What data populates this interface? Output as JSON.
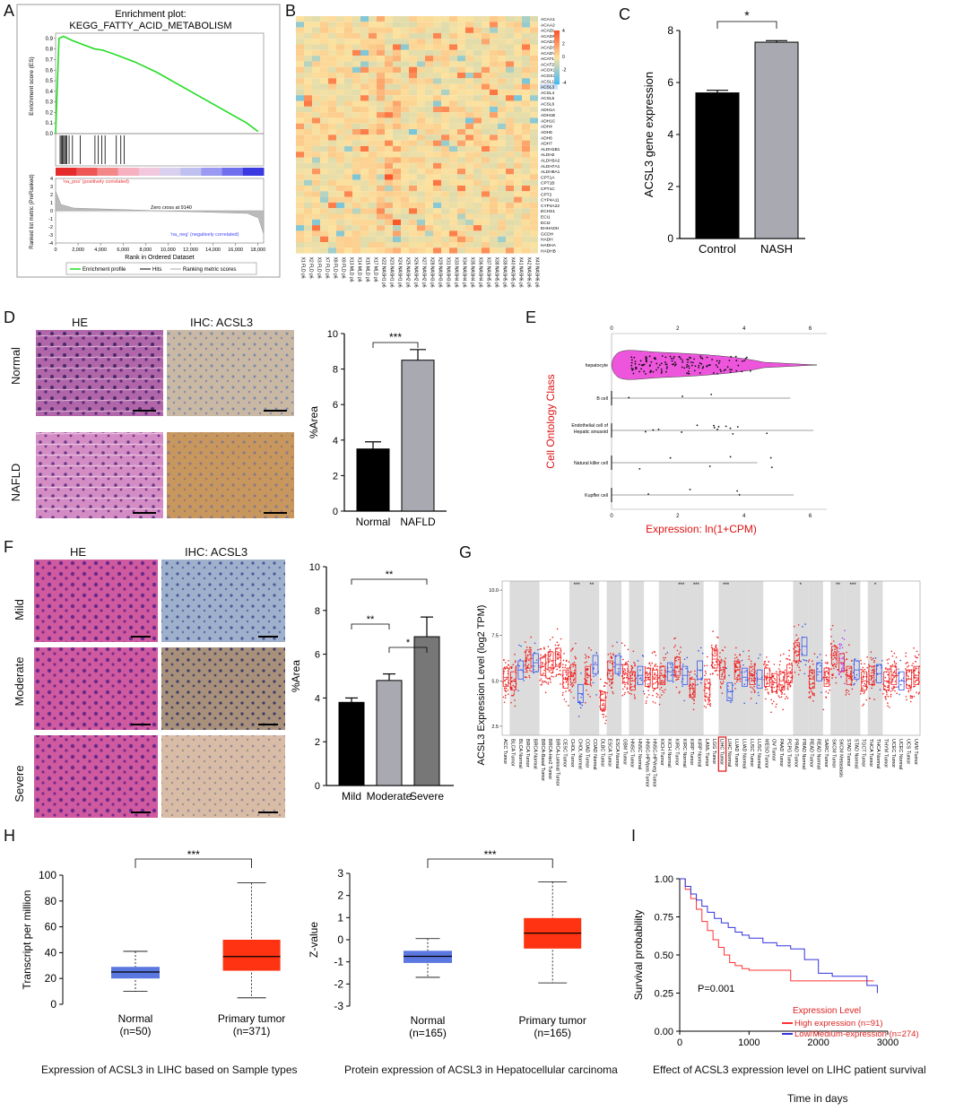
{
  "panels": {
    "A": "A",
    "B": "B",
    "C": "C",
    "D": "D",
    "E": "E",
    "F": "F",
    "G": "G",
    "H": "H",
    "I": "I"
  },
  "panelA": {
    "title_line1": "Enrichment plot:",
    "title_line2": "KEGG_FATTY_ACID_METABOLISM",
    "es_ylabel": "Enrichment score (ES)",
    "rank_ylabel": "Ranked list metric (PreRanked)",
    "xlabel": "Rank in Ordered Dataset",
    "pos_label": "'na_pos' (positively correlated)",
    "neg_label": "'na_neg' (negatively correlated)",
    "zero_cross": "Zero cross at 9140",
    "legend": [
      "Enrichment profile",
      "Hits",
      "Ranking metric scores"
    ],
    "colors": {
      "es": "#22dd22",
      "hits": "#000000",
      "rank": "#aaaaaa"
    }
  },
  "chart_data": [
    {
      "id": "A-es",
      "type": "line",
      "title": "KEGG_FATTY_ACID_METABOLISM",
      "x": [
        0,
        300,
        700,
        1500,
        2500,
        3500,
        4200,
        5500,
        7000,
        9000,
        11000,
        13000,
        15000,
        17000,
        18000
      ],
      "values": [
        0,
        0.9,
        0.92,
        0.88,
        0.84,
        0.8,
        0.79,
        0.74,
        0.68,
        0.58,
        0.46,
        0.34,
        0.22,
        0.1,
        0.02
      ],
      "xlim": [
        0,
        18500
      ],
      "ylim": [
        0,
        0.95
      ],
      "yticks": [
        0.0,
        0.1,
        0.2,
        0.3,
        0.4,
        0.5,
        0.6,
        0.7,
        0.8,
        0.9
      ],
      "xticks": [
        0,
        2000,
        4000,
        6000,
        8000,
        10000,
        12000,
        14000,
        16000,
        18000
      ],
      "xtick_labels": [
        "0",
        "2,000",
        "4,000",
        "6,000",
        "8,000",
        "10,000",
        "12,000",
        "14,000",
        "16,000",
        "18,000"
      ]
    },
    {
      "id": "A-rank",
      "type": "area",
      "ylim": [
        -4,
        4
      ],
      "yticks": [
        4,
        3,
        2,
        1,
        0,
        -1,
        -2,
        -3,
        -4
      ],
      "zero_cross": 9140
    },
    {
      "id": "B",
      "type": "heatmap",
      "rows": [
        "ACAA1",
        "ACAA2",
        "ACADL",
        "ACADM",
        "ACADS",
        "ACADSB",
        "ACADVL",
        "ACAT1",
        "ACAT2",
        "ACOX1",
        "ACOX3",
        "ACSL1",
        "ACSL3",
        "ACSL4",
        "ACSL5",
        "ACSL6",
        "ADH1A",
        "ADH1B",
        "ADH1C",
        "ADH4",
        "ADH5",
        "ADH6",
        "ADH7",
        "ALDH1B1",
        "ALDH2",
        "ALDH3A2",
        "ALDH7A1",
        "ALDH9A1",
        "CPT1A",
        "CPT1B",
        "CPT1C",
        "CPT2",
        "CYP4A11",
        "CYP4A22",
        "ECHS1",
        "ECI1",
        "ECI2",
        "EHHADH",
        "GCDH",
        "HADH",
        "HADHA",
        "HADHB"
      ],
      "cols": [
        "X1 FLD p6",
        "X2 FLD p6",
        "X3 FLD p6",
        "X7 FLD p6",
        "X8 FLD p6",
        "X9 FLD p6",
        "X13 MLD p6",
        "X14 MLD p6",
        "X15 MLD p6",
        "X17 MLD p6",
        "X22 NASH1 p6",
        "X23 NASH1 p6",
        "X24 NASH1 p6",
        "X25 NASH2 p6",
        "X26 NASH2 p6",
        "X27 NASH2 p6",
        "X28 NASH3 p6",
        "X29 NASH3 p6",
        "X31 NASH3 p6",
        "X33 NASH4 p6",
        "X34 NASH4 p6",
        "X35 NASH4 p6",
        "X36 NASH4 p6",
        "X37 NASH5 p6",
        "X38 NASH5 p6",
        "X39 NASH5 p6",
        "X40 NASH5 p6",
        "X41 NASH6 p6",
        "X42 NASH6 p6",
        "X43 NASH6 p6"
      ],
      "legend_ticks": [
        "4",
        "2",
        "0",
        "-2",
        "-4"
      ],
      "highlight_row": "ACSL3"
    },
    {
      "id": "C",
      "type": "bar",
      "categories": [
        "Control",
        "NASH"
      ],
      "values": [
        5.6,
        7.55
      ],
      "errors": [
        0.1,
        0.06
      ],
      "ylabel": "ACSL3 gene expression",
      "ylim": [
        0,
        8
      ],
      "yticks": [
        0,
        2,
        4,
        6,
        8
      ],
      "significance": "*",
      "colors": [
        "#000000",
        "#a9a9b1"
      ]
    },
    {
      "id": "D",
      "type": "bar",
      "categories": [
        "Normal",
        "NAFLD"
      ],
      "values": [
        3.5,
        8.5
      ],
      "errors": [
        0.4,
        0.6
      ],
      "ylabel": "%Area",
      "ylim": [
        0,
        10
      ],
      "yticks": [
        0,
        2,
        4,
        6,
        8,
        10
      ],
      "significance": "***",
      "colors": [
        "#000000",
        "#a9a9b1"
      ]
    },
    {
      "id": "E",
      "type": "scatter",
      "xlabel": "Expression: ln(1+CPM)",
      "ylabel": "Cell Ontology Class",
      "categories": [
        "hepatocyte",
        "B cell",
        "Endothelial cell of Hepatic sinusoid",
        "Natural killer cell",
        "Kupffer cell"
      ],
      "xticks": [
        0,
        2,
        4,
        6
      ],
      "xlim": [
        0,
        6.5
      ],
      "ranges": [
        [
          0,
          6.2
        ],
        [
          0,
          5.4
        ],
        [
          0,
          6.1
        ],
        [
          0,
          4.4
        ],
        [
          0,
          5.5
        ]
      ]
    },
    {
      "id": "F",
      "type": "bar",
      "categories": [
        "Mild",
        "Moderate",
        "Severe"
      ],
      "values": [
        3.8,
        4.8,
        6.8
      ],
      "errors": [
        0.2,
        0.3,
        0.9
      ],
      "ylabel": "%Area",
      "ylim": [
        0,
        10
      ],
      "yticks": [
        0,
        2,
        4,
        6,
        8,
        10
      ],
      "significance": [
        {
          "pair": [
            "Mild",
            "Severe"
          ],
          "label": "**"
        },
        {
          "pair": [
            "Mild",
            "Moderate"
          ],
          "label": "**"
        },
        {
          "pair": [
            "Moderate",
            "Severe"
          ],
          "label": "*"
        }
      ],
      "colors": [
        "#000000",
        "#a9a9b1",
        "#777777"
      ]
    },
    {
      "id": "G",
      "type": "scatter",
      "ylabel": "ACSL3 Expression Level (log2 TPM)",
      "yticks": [
        2.5,
        5.0,
        7.5,
        10.0
      ],
      "ylim": [
        2,
        10.5
      ],
      "categories": [
        "ACC.Tumor",
        "BLCA.Tumor",
        "BLCA.Normal",
        "BRCA.Tumor",
        "BRCA.Normal",
        "BRCA-Basal.Tumor",
        "BRCA-Her2.Tumor",
        "BRCA-Luminal.Tumor",
        "CESC.Tumor",
        "CHOL.Tumor",
        "CHOL.Normal",
        "COAD.Tumor",
        "COAD.Normal",
        "DLBC.Tumor",
        "ESCA.Tumor",
        "ESCA.Normal",
        "GBM.Tumor",
        "HNSC.Tumor",
        "HNSC.Normal",
        "HNSC-HPVpos.Tumor",
        "HNSC-HPVneg.Tumor",
        "KICH.Tumor",
        "KICH.Normal",
        "KIRC.Tumor",
        "KIRC.Normal",
        "KIRP.Tumor",
        "KIRP.Normal",
        "LAML.Tumor",
        "LGG.Tumor",
        "LIHC.Tumor",
        "LIHC.Normal",
        "LUAD.Tumor",
        "LUAD.Normal",
        "LUSC.Tumor",
        "LUSC.Normal",
        "MESO.Tumor",
        "OV.Tumor",
        "PAAD.Tumor",
        "PCPG.Tumor",
        "PRAD.Tumor",
        "PRAD.Normal",
        "READ.Tumor",
        "READ.Normal",
        "SARC.Tumor",
        "SKCM.Tumor",
        "SKCM.Metastasis",
        "STAD.Tumor",
        "STAD.Normal",
        "TGCT.Tumor",
        "THCA.Tumor",
        "THCA.Normal",
        "THYM.Tumor",
        "UCEC.Tumor",
        "UCEC.Normal",
        "UCS.Tumor",
        "UVM.Tumor"
      ],
      "medians": [
        5.2,
        5.0,
        5.6,
        6.2,
        6.0,
        5.8,
        6.1,
        6.3,
        5.1,
        5.4,
        4.3,
        5.3,
        5.9,
        3.9,
        5.6,
        5.9,
        5.4,
        5.0,
        5.3,
        5.2,
        5.1,
        5.3,
        5.5,
        5.8,
        5.3,
        4.6,
        5.6,
        4.6,
        6.2,
        5.6,
        4.4,
        5.6,
        5.2,
        5.3,
        5.1,
        5.2,
        4.9,
        5.0,
        5.4,
        6.6,
        6.9,
        5.1,
        5.5,
        5.2,
        6.4,
        6.0,
        5.3,
        5.6,
        5.0,
        5.3,
        5.4,
        5.0,
        5.3,
        5.0,
        5.1,
        5.3
      ],
      "significance": {
        "CHOL.Normal": "***",
        "COAD.Normal": "**",
        "KIRC.Normal": "***",
        "KIRP.Normal": "***",
        "LIHC.Normal": "***",
        "PRAD.Normal": "*",
        "SKCM.Metastasis": "**",
        "STAD.Normal": "***",
        "THCA.Normal": "*"
      },
      "highlight": "LIHC.Tumor"
    },
    {
      "id": "H-left",
      "type": "box",
      "categories": [
        "Normal\n(n=50)",
        "Primary tumor\n(n=371)"
      ],
      "boxes": [
        {
          "min": 10,
          "q1": 20,
          "median": 25,
          "q3": 29,
          "max": 41,
          "color": "#5b77e0"
        },
        {
          "min": 5,
          "q1": 26,
          "median": 37,
          "q3": 50,
          "max": 94,
          "color": "#ff3311"
        }
      ],
      "ylabel": "Transcript per million",
      "ylim": [
        0,
        100
      ],
      "yticks": [
        0,
        20,
        40,
        60,
        80,
        100
      ],
      "significance": "***",
      "caption": "Expression of ACSL3 in LIHC based on Sample types"
    },
    {
      "id": "H-right",
      "type": "box",
      "categories": [
        "Normal\n(n=165)",
        "Primary tumor\n(n=165)"
      ],
      "boxes": [
        {
          "min": -1.7,
          "q1": -1.05,
          "median": -0.75,
          "q3": -0.5,
          "max": 0.05,
          "color": "#5b77e0"
        },
        {
          "min": -1.95,
          "q1": -0.4,
          "median": 0.3,
          "q3": 0.98,
          "max": 2.62,
          "color": "#ff3311"
        }
      ],
      "ylabel": "Z-value",
      "ylim": [
        -3,
        3
      ],
      "yticks": [
        -3,
        -2,
        -1,
        0,
        1,
        2,
        3
      ],
      "significance": "***",
      "caption": "Protein expression of ACSL3 in Hepatocellular carcinoma"
    },
    {
      "id": "I",
      "type": "line",
      "ylabel": "Survival probability",
      "xlabel": "Time in days",
      "xlim": [
        0,
        3000
      ],
      "ylim": [
        0,
        1
      ],
      "xticks": [
        0,
        1000,
        2000,
        3000
      ],
      "yticks": [
        0.0,
        0.25,
        0.5,
        0.75,
        1.0
      ],
      "pvalue": "P=0.001",
      "legend_title": "Expression Level",
      "series": [
        {
          "name": "High expression (n=91)",
          "color": "#ff3333",
          "x": [
            0,
            80,
            160,
            240,
            320,
            400,
            480,
            560,
            640,
            720,
            800,
            900,
            1000,
            1200,
            1400,
            1600,
            1900,
            2300,
            2800
          ],
          "values": [
            1.0,
            0.93,
            0.87,
            0.8,
            0.72,
            0.66,
            0.6,
            0.55,
            0.5,
            0.45,
            0.43,
            0.41,
            0.4,
            0.4,
            0.4,
            0.33,
            0.33,
            0.33,
            0.33
          ]
        },
        {
          "name": "Low/Medium-expression (n=274)",
          "color": "#3333dd",
          "x": [
            0,
            80,
            160,
            240,
            320,
            400,
            500,
            600,
            700,
            800,
            900,
            1000,
            1200,
            1400,
            1600,
            1800,
            2000,
            2200,
            2500,
            2700,
            2850
          ],
          "values": [
            1.0,
            0.95,
            0.9,
            0.86,
            0.82,
            0.78,
            0.74,
            0.71,
            0.68,
            0.65,
            0.63,
            0.61,
            0.58,
            0.56,
            0.54,
            0.47,
            0.38,
            0.36,
            0.36,
            0.3,
            0.25
          ]
        }
      ]
    }
  ],
  "panelD": {
    "col_he": "HE",
    "col_ihc": "IHC: ACSL3",
    "row1": "Normal",
    "row2": "NAFLD"
  },
  "panelF": {
    "col_he": "HE",
    "col_ihc": "IHC: ACSL3",
    "row1": "Mild",
    "row2": "Moderate",
    "row3": "Severe"
  },
  "panelH": {
    "caption_left": "Expression of ACSL3 in LIHC based on Sample types",
    "caption_right": "Protein expression of ACSL3 in Hepatocellular carcinoma",
    "cat1_line1": "Normal",
    "cat1_line2": "(n=50)",
    "cat2_line1": "Primary tumor",
    "cat2_line2": "(n=371)",
    "cat3_line1": "Normal",
    "cat3_line2": "(n=165)",
    "cat4_line1": "Primary tumor",
    "cat4_line2": "(n=165)"
  },
  "panelI": {
    "caption": "Effect of ACSL3 expression level on LIHC patient survival",
    "xlabel": "Time in days",
    "legend_title": "Expression Level",
    "high": "High expression (n=91)",
    "low": "Low/Medium-expression (n=274)",
    "pvalue": "P=0.001"
  }
}
